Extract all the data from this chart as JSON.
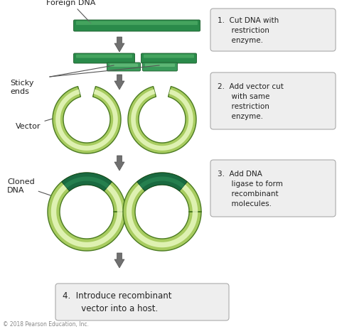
{
  "bg_color": "#ffffff",
  "dark_green_tube": "#2a8a4a",
  "light_green_tube": "#5ab870",
  "sticky_dark": "#3a9a5a",
  "sticky_light": "#7acc8a",
  "ring_outer_edge": "#4a7a20",
  "ring_outer_fill": "#a8cc60",
  "ring_mid_fill": "#c8e880",
  "ring_inner_fill": "#e8f8c0",
  "cloned_dark": "#1a6a40",
  "cloned_mid": "#2a8855",
  "arrow_fill": "#707070",
  "arrow_edge": "#505050",
  "text_color": "#222222",
  "box_bg": "#eeeeee",
  "box_edge": "#aaaaaa",
  "copyright": "© 2018 Pearson Education, Inc.",
  "step1": "1.  Cut DNA with\nrestriction\nenzyme.",
  "step2": "2.  Add vector cut\nwith same\nrestriction\nenzyme.",
  "step3": "3.  Add DNA\nligase to form\nrecombinant\nmolecules.",
  "step4": "4.  Introduce recombinant\nvector into a host."
}
